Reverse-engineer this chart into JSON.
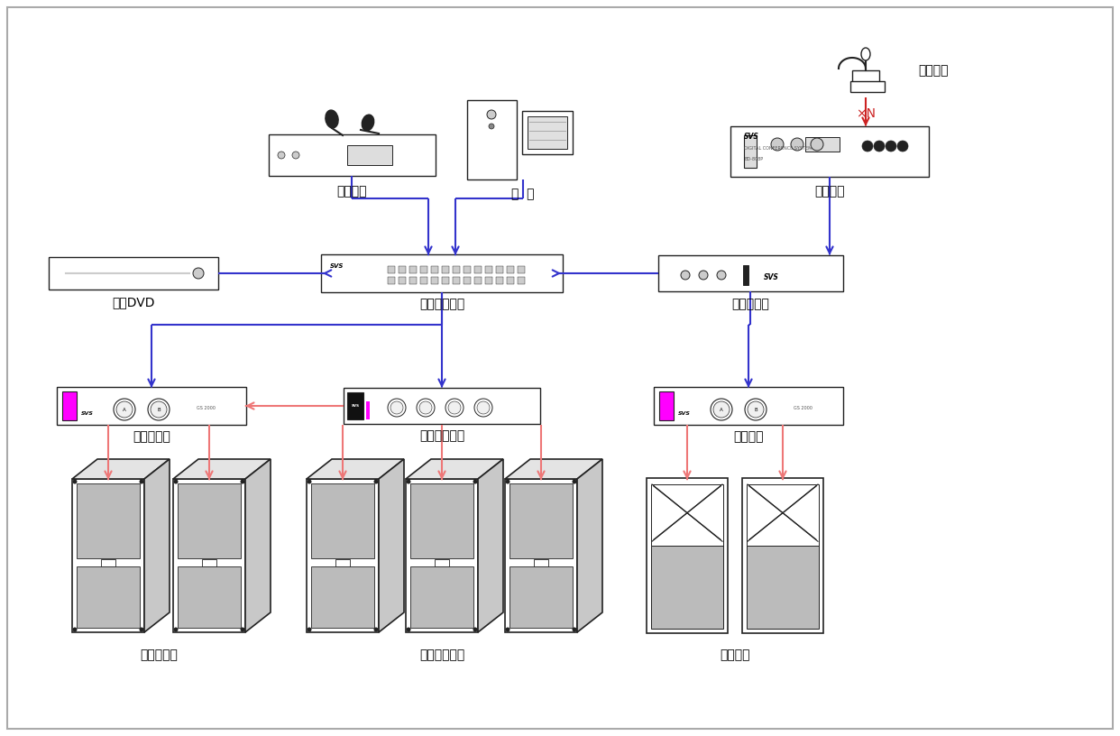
{
  "bg": "#ffffff",
  "blue": "#3333cc",
  "red": "#cc2222",
  "pink": "#ee7777",
  "dc": "#222222",
  "magenta": "#ff00ff",
  "gray_grille": "#bbbbbb",
  "gray_side": "#cccccc",
  "gray_top": "#e0e0e0",
  "labels": {
    "wuxian": "无线话筒",
    "diannao": "电  脑",
    "huiyi": "会议主机",
    "fayan": "发言单元",
    "dvd": "蓝光DVD",
    "matrix": "数字媒体矩阵",
    "fankui": "反馈抑制器",
    "zhu_amp": "主扩声功放",
    "fu_amp": "辅助扩声功放",
    "fan_amp": "返听功放",
    "zhu_spk": "主扩声音箱",
    "fu_spk": "辅助扩声音箱",
    "fan_spk": "返听音箱",
    "xN": "×N"
  }
}
